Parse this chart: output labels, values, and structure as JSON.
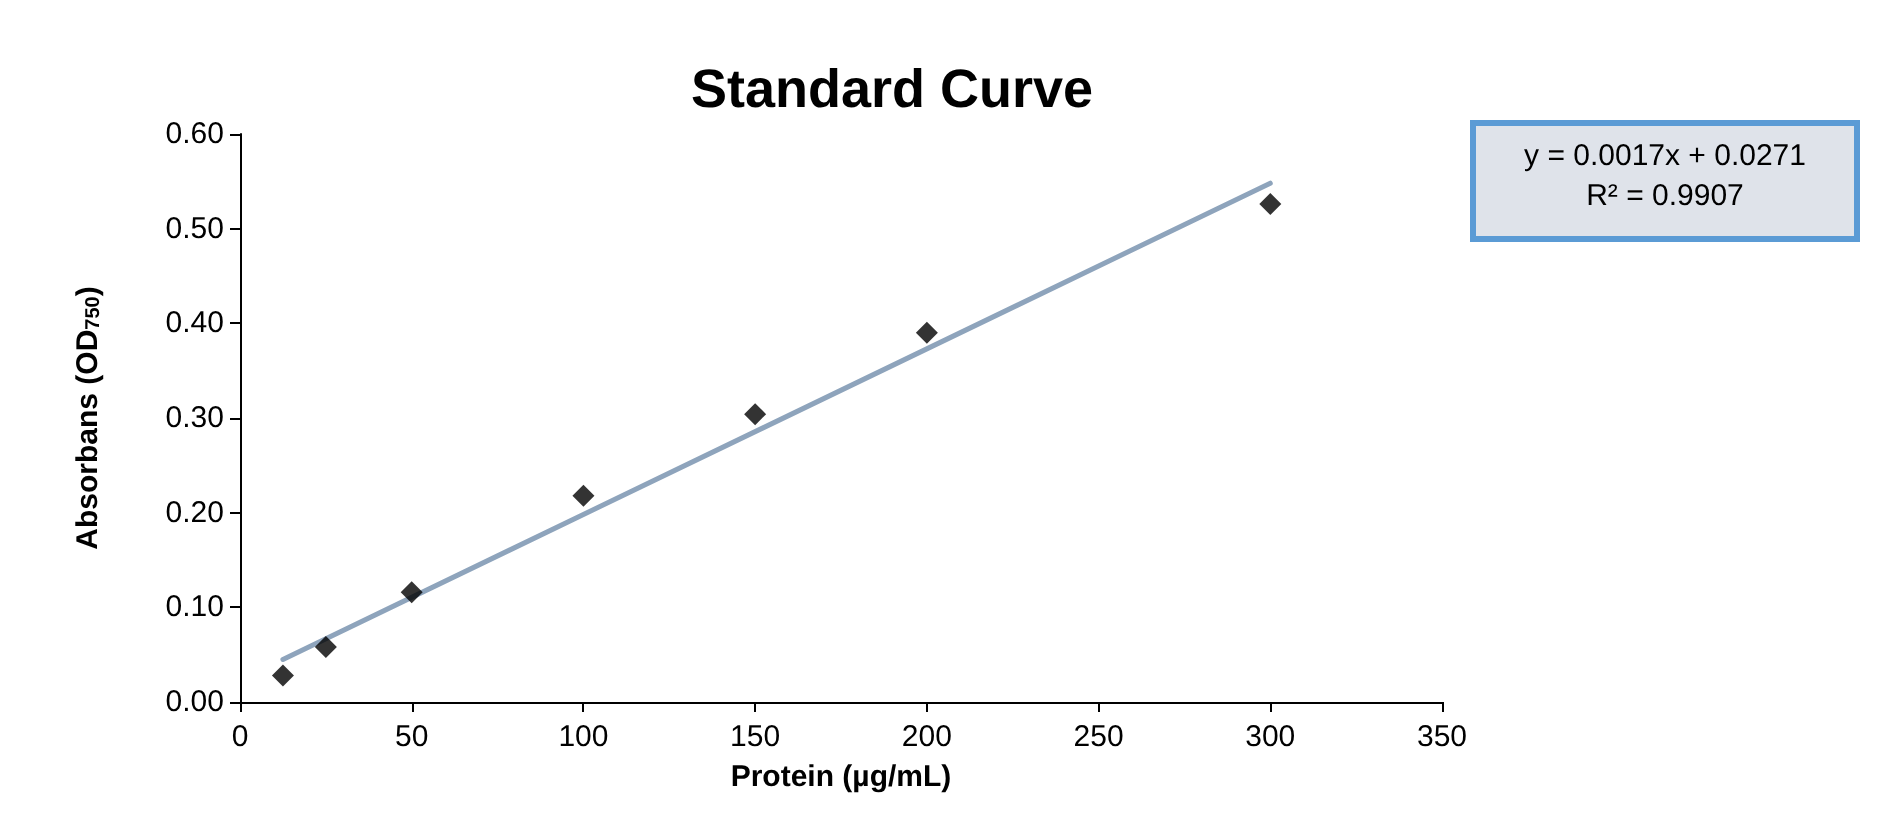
{
  "chart_data": {
    "type": "scatter",
    "title": "Standard Curve",
    "xlabel": "Protein (µg/mL)",
    "ylabel": "Absorbans (OD$_{750}$)",
    "x": [
      12.5,
      25,
      50,
      100,
      150,
      200,
      300
    ],
    "series": [
      {
        "color": "#000000",
        "marker": "diamond",
        "values": [
          0.028,
          0.058,
          0.116,
          0.218,
          0.304,
          0.39,
          0.526
        ]
      },
      {
        "type": "line",
        "color": "#8ea4bc",
        "marker": "none",
        "x": [
          12.5,
          300
        ],
        "values": [
          0.045,
          0.548
        ]
      }
    ],
    "xlim": [
      0,
      350
    ],
    "xticks": [
      0,
      50,
      100,
      150,
      200,
      250,
      300,
      350
    ],
    "ylim": [
      0,
      0.6
    ],
    "yticks": [
      {
        "value": 0,
        "label": "0.00"
      },
      {
        "value": 0.1,
        "label": "0.10"
      },
      {
        "value": 0.2,
        "label": "0.20"
      },
      {
        "value": 0.3,
        "label": "0.30"
      },
      {
        "value": 0.4,
        "label": "0.40"
      },
      {
        "value": 0.5,
        "label": "0.50"
      },
      {
        "value": 0.6,
        "label": "0.60"
      }
    ],
    "annotations": [
      "y = 0.0017x + 0.0271",
      "R² = 0.9907"
    ],
    "grid": false
  }
}
